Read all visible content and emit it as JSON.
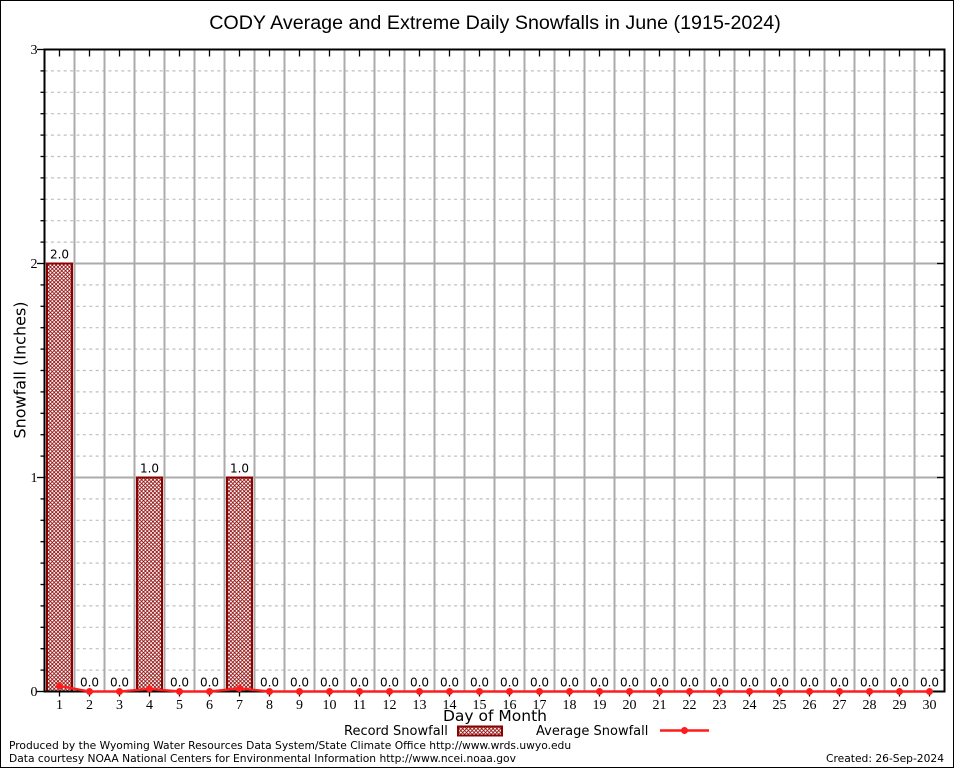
{
  "page": {
    "footer_line1": "Produced by the Wyoming Water Resources Data System/State Climate Office http://www.wrds.uwyo.edu",
    "footer_line2": "Data courtesy NOAA National Centers for Environmental Information http://www.ncei.noaa.gov",
    "created": "Created: 26-Sep-2024"
  },
  "chart_data": {
    "type": "bar",
    "title": "CODY Average and Extreme Daily Snowfalls in June (1915-2024)",
    "xlabel": "Day of Month",
    "ylabel": "Snowfall (Inches)",
    "ylim": [
      0,
      3
    ],
    "yticks": [
      0,
      1,
      2,
      3
    ],
    "y_minor_step": 0.1,
    "grid": true,
    "legend_position": "bottom",
    "categories": [
      1,
      2,
      3,
      4,
      5,
      6,
      7,
      8,
      9,
      10,
      11,
      12,
      13,
      14,
      15,
      16,
      17,
      18,
      19,
      20,
      21,
      22,
      23,
      24,
      25,
      26,
      27,
      28,
      29,
      30
    ],
    "series": [
      {
        "name": "Record Snowfall",
        "type": "bar",
        "values": [
          2.0,
          0.0,
          0.0,
          1.0,
          0.0,
          0.0,
          1.0,
          0.0,
          0.0,
          0.0,
          0.0,
          0.0,
          0.0,
          0.0,
          0.0,
          0.0,
          0.0,
          0.0,
          0.0,
          0.0,
          0.0,
          0.0,
          0.0,
          0.0,
          0.0,
          0.0,
          0.0,
          0.0,
          0.0,
          0.0
        ]
      },
      {
        "name": "Average Snowfall",
        "type": "line",
        "values": [
          0.026,
          0.0,
          0.0,
          0.012,
          0.0,
          0.0,
          0.014,
          0.0,
          0.0,
          0.0,
          0.0,
          0.0,
          0.0,
          0.0,
          0.0,
          0.0,
          0.0,
          0.0,
          0.0,
          0.0,
          0.0,
          0.0,
          0.0,
          0.0,
          0.0,
          0.0,
          0.0,
          0.0,
          0.0,
          0.0
        ]
      }
    ],
    "colors": {
      "bar_border": "#8b0000",
      "bar_hatch": "#8b0000",
      "line": "#ff1c1c",
      "grid_major": "#ababab",
      "grid_minor": "#bfbfbf",
      "axis": "#000000"
    }
  }
}
